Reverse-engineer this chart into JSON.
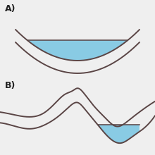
{
  "background_color": "#efefef",
  "water_color": "#7ec8e3",
  "water_alpha": 0.9,
  "line_color": "#5a4545",
  "line_width": 1.4,
  "label_A": "A)",
  "label_B": "B)",
  "label_fontsize": 9,
  "label_color": "#222222"
}
